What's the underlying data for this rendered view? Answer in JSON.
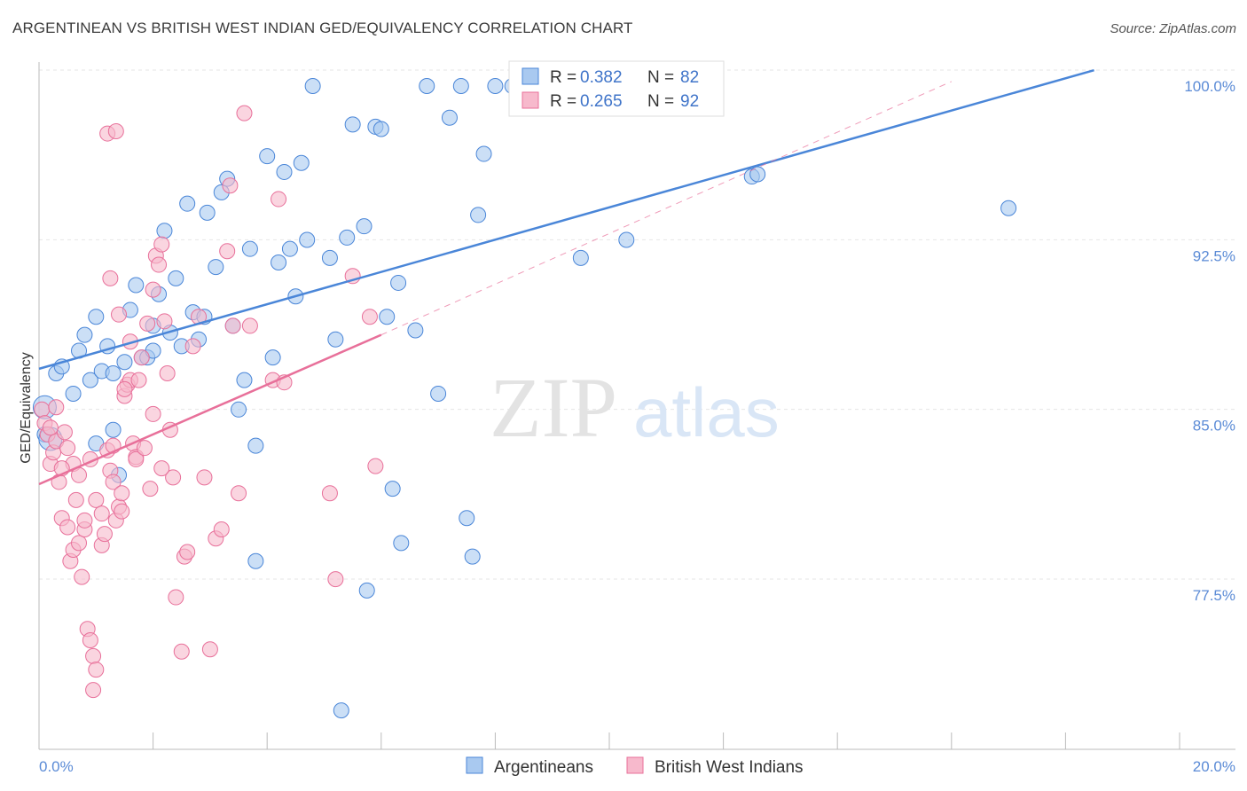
{
  "title": "ARGENTINEAN VS BRITISH WEST INDIAN GED/EQUIVALENCY CORRELATION CHART",
  "source": "Source: ZipAtlas.com",
  "watermark": {
    "zip": "ZIP",
    "atlas": "atlas"
  },
  "chart_data": {
    "type": "scatter",
    "xlabel": "",
    "ylabel": "GED/Equivalency",
    "xlim": [
      0,
      20
    ],
    "ylim": [
      70.5,
      101.5
    ],
    "x_tick_labels": [
      "0.0%",
      "20.0%"
    ],
    "y_ticks": [
      77.5,
      85.0,
      92.5,
      100.0
    ],
    "y_tick_labels": [
      "77.5%",
      "85.0%",
      "92.5%",
      "100.0%"
    ],
    "grid": true,
    "legend": {
      "position": "top-center",
      "rows": [
        {
          "r_label": "R = ",
          "r_value": "0.382",
          "n_label": "N = ",
          "n_value": "82"
        },
        {
          "r_label": "R = ",
          "r_value": "0.265",
          "n_label": "N = ",
          "n_value": "92"
        }
      ]
    },
    "series": [
      {
        "name": "Argentineans",
        "color": "#4a86d8",
        "fill": "#a9c9f0",
        "trend": {
          "x0": 0.0,
          "y0": 87.5,
          "x1": 18.5,
          "y1": 100.7
        },
        "points": [
          [
            0.1,
            85.8
          ],
          [
            0.1,
            84.6
          ],
          [
            0.2,
            84.4
          ],
          [
            0.3,
            87.3
          ],
          [
            0.4,
            87.6
          ],
          [
            0.6,
            86.4
          ],
          [
            0.7,
            88.3
          ],
          [
            0.8,
            89.0
          ],
          [
            0.9,
            87.0
          ],
          [
            1.0,
            89.8
          ],
          [
            1.1,
            87.4
          ],
          [
            1.2,
            88.5
          ],
          [
            1.3,
            84.8
          ],
          [
            1.3,
            87.3
          ],
          [
            1.4,
            82.8
          ],
          [
            1.5,
            87.8
          ],
          [
            1.6,
            90.1
          ],
          [
            1.7,
            91.2
          ],
          [
            1.8,
            88.0
          ],
          [
            1.9,
            88.0
          ],
          [
            2.0,
            89.4
          ],
          [
            2.0,
            88.3
          ],
          [
            2.1,
            90.8
          ],
          [
            2.2,
            93.6
          ],
          [
            2.3,
            89.1
          ],
          [
            2.4,
            91.5
          ],
          [
            2.5,
            88.5
          ],
          [
            2.6,
            94.8
          ],
          [
            2.7,
            90.0
          ],
          [
            2.8,
            88.8
          ],
          [
            2.9,
            89.8
          ],
          [
            2.95,
            94.4
          ],
          [
            3.1,
            92.0
          ],
          [
            3.2,
            95.3
          ],
          [
            3.3,
            95.9
          ],
          [
            3.4,
            89.4
          ],
          [
            3.5,
            85.7
          ],
          [
            3.6,
            87.0
          ],
          [
            3.7,
            92.8
          ],
          [
            3.8,
            84.1
          ],
          [
            4.0,
            96.9
          ],
          [
            4.1,
            88.0
          ],
          [
            4.2,
            92.2
          ],
          [
            4.3,
            96.2
          ],
          [
            4.4,
            92.8
          ],
          [
            4.5,
            90.7
          ],
          [
            4.6,
            96.6
          ],
          [
            4.7,
            93.2
          ],
          [
            4.8,
            100.0
          ],
          [
            5.1,
            92.4
          ],
          [
            5.2,
            88.8
          ],
          [
            5.4,
            93.3
          ],
          [
            5.5,
            98.3
          ],
          [
            5.7,
            93.8
          ],
          [
            5.75,
            77.7
          ],
          [
            5.9,
            98.2
          ],
          [
            6.0,
            98.1
          ],
          [
            6.1,
            89.8
          ],
          [
            6.2,
            82.2
          ],
          [
            6.3,
            91.3
          ],
          [
            6.35,
            79.8
          ],
          [
            6.6,
            89.2
          ],
          [
            6.8,
            100.0
          ],
          [
            7.0,
            86.4
          ],
          [
            7.2,
            98.6
          ],
          [
            7.4,
            100.0
          ],
          [
            7.5,
            80.9
          ],
          [
            7.6,
            79.2
          ],
          [
            7.7,
            94.3
          ],
          [
            7.8,
            97.0
          ],
          [
            8.0,
            100.0
          ],
          [
            8.3,
            100.0
          ],
          [
            8.4,
            100.0
          ],
          [
            8.7,
            100.0
          ],
          [
            9.5,
            92.4
          ],
          [
            10.3,
            93.2
          ],
          [
            12.5,
            96.0
          ],
          [
            12.6,
            96.1
          ],
          [
            17.0,
            94.6
          ],
          [
            5.3,
            72.4
          ],
          [
            3.8,
            79.0
          ],
          [
            1.0,
            84.2
          ]
        ],
        "big_points": [
          [
            0.1,
            85.8
          ],
          [
            0.2,
            84.4
          ]
        ]
      },
      {
        "name": "British West Indians",
        "color": "#e8709a",
        "fill": "#f7b9cc",
        "trend": {
          "x0": 0.0,
          "y0": 82.4,
          "x1": 6.0,
          "y1": 89.0
        },
        "trend_dashed": {
          "x0": 6.0,
          "y0": 89.0,
          "x1": 16.0,
          "y1": 100.2
        },
        "points": [
          [
            0.05,
            85.7
          ],
          [
            0.1,
            85.1
          ],
          [
            0.15,
            84.6
          ],
          [
            0.2,
            83.3
          ],
          [
            0.25,
            83.8
          ],
          [
            0.3,
            84.3
          ],
          [
            0.35,
            82.5
          ],
          [
            0.4,
            80.9
          ],
          [
            0.45,
            84.7
          ],
          [
            0.5,
            80.5
          ],
          [
            0.55,
            79.0
          ],
          [
            0.6,
            79.5
          ],
          [
            0.65,
            81.7
          ],
          [
            0.7,
            79.8
          ],
          [
            0.75,
            78.3
          ],
          [
            0.8,
            80.4
          ],
          [
            0.85,
            76.0
          ],
          [
            0.9,
            75.5
          ],
          [
            0.95,
            74.8
          ],
          [
            1.0,
            74.2
          ],
          [
            0.95,
            73.3
          ],
          [
            1.1,
            79.7
          ],
          [
            1.15,
            80.2
          ],
          [
            1.2,
            83.9
          ],
          [
            1.25,
            83.0
          ],
          [
            1.3,
            82.5
          ],
          [
            1.35,
            80.8
          ],
          [
            1.4,
            81.4
          ],
          [
            1.45,
            82.0
          ],
          [
            1.5,
            86.3
          ],
          [
            1.55,
            86.8
          ],
          [
            1.6,
            87.0
          ],
          [
            1.65,
            84.2
          ],
          [
            1.7,
            83.6
          ],
          [
            1.8,
            88.0
          ],
          [
            1.9,
            89.5
          ],
          [
            2.0,
            91.0
          ],
          [
            2.05,
            92.5
          ],
          [
            2.1,
            92.1
          ],
          [
            2.15,
            93.0
          ],
          [
            2.2,
            89.6
          ],
          [
            2.25,
            87.3
          ],
          [
            2.3,
            84.8
          ],
          [
            2.35,
            82.7
          ],
          [
            2.4,
            77.4
          ],
          [
            2.5,
            75.0
          ],
          [
            2.55,
            79.2
          ],
          [
            2.6,
            79.4
          ],
          [
            2.7,
            88.5
          ],
          [
            2.8,
            89.8
          ],
          [
            2.9,
            82.7
          ],
          [
            3.0,
            75.1
          ],
          [
            3.1,
            80.0
          ],
          [
            3.2,
            80.4
          ],
          [
            3.3,
            92.7
          ],
          [
            3.35,
            95.6
          ],
          [
            3.4,
            89.4
          ],
          [
            3.5,
            82.0
          ],
          [
            3.6,
            98.8
          ],
          [
            3.7,
            89.4
          ],
          [
            4.1,
            87.0
          ],
          [
            4.2,
            95.0
          ],
          [
            4.3,
            86.9
          ],
          [
            5.1,
            82.0
          ],
          [
            5.2,
            78.2
          ],
          [
            5.5,
            91.6
          ],
          [
            5.8,
            89.8
          ],
          [
            5.9,
            83.2
          ],
          [
            1.2,
            97.9
          ],
          [
            1.35,
            98.0
          ],
          [
            1.5,
            86.6
          ],
          [
            1.7,
            83.5
          ],
          [
            1.0,
            81.7
          ],
          [
            0.8,
            80.8
          ],
          [
            1.1,
            81.1
          ],
          [
            0.6,
            83.3
          ],
          [
            0.7,
            82.8
          ],
          [
            0.9,
            83.5
          ],
          [
            1.3,
            84.1
          ],
          [
            1.4,
            89.9
          ],
          [
            1.6,
            88.7
          ],
          [
            1.75,
            87.0
          ],
          [
            1.85,
            84.0
          ],
          [
            1.95,
            82.2
          ],
          [
            2.0,
            85.5
          ],
          [
            1.25,
            91.5
          ],
          [
            0.5,
            84.0
          ],
          [
            0.4,
            83.1
          ],
          [
            0.3,
            85.8
          ],
          [
            0.2,
            84.9
          ],
          [
            1.45,
            81.2
          ],
          [
            2.15,
            83.1
          ]
        ]
      }
    ]
  }
}
